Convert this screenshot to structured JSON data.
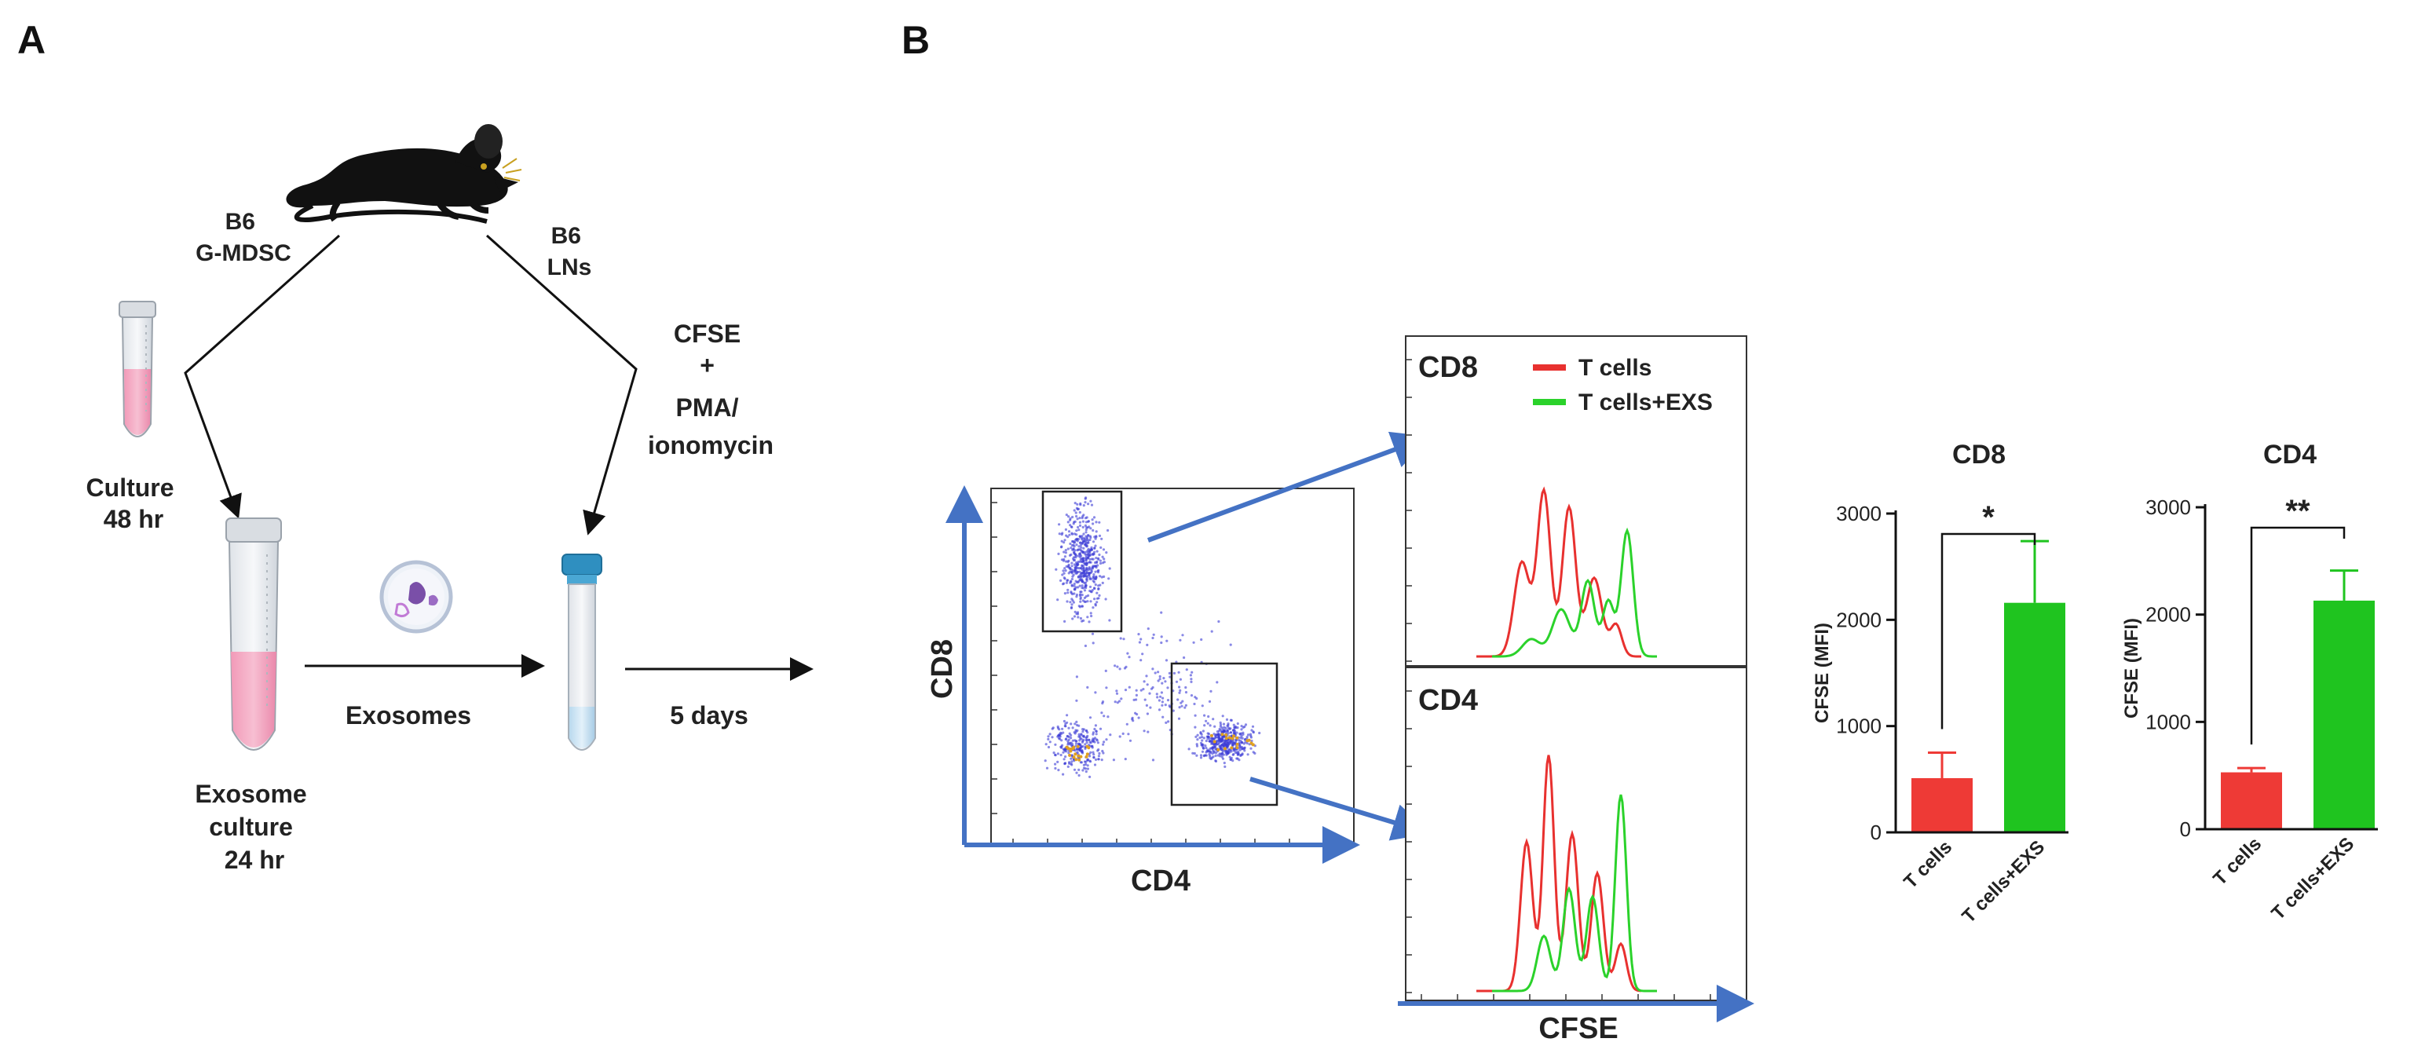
{
  "panels": {
    "a": "A",
    "b": "B"
  },
  "workflow": {
    "donor_left": [
      "B6",
      "G-MDSC"
    ],
    "donor_right": [
      "B6",
      "LNs"
    ],
    "culture": [
      "Culture",
      "48 hr"
    ],
    "stim": [
      "CFSE",
      "+",
      "PMA/",
      "ionomycin"
    ],
    "exosome_culture": [
      "Exosome",
      "culture",
      "24 hr"
    ],
    "exosomes": "Exosomes",
    "duration": "5 days"
  },
  "flow": {
    "x_label": "CD4",
    "y_label": "CD8",
    "hist_top_label": "CD8",
    "hist_bottom_label": "CD4",
    "hist_x_label": "CFSE",
    "legend": [
      {
        "name": "T cells",
        "color": "#e8312f"
      },
      {
        "name": "T cells+EXS",
        "color": "#2bd22b"
      }
    ]
  },
  "colors": {
    "red": "#ee3a36",
    "green": "#1fc41f",
    "arrow_blue": "#4472c4",
    "dot_blue": "#3a3ad6"
  },
  "chart_data": [
    {
      "type": "bar",
      "title": "CD8",
      "categories": [
        "T cells",
        "T cells+EXS"
      ],
      "values": [
        510,
        2160
      ],
      "errors": [
        240,
        580
      ],
      "ylabel": "CFSE (MFI)",
      "ylim": [
        0,
        3000
      ],
      "yticks": [
        0,
        1000,
        2000,
        3000
      ],
      "significance": "*"
    },
    {
      "type": "bar",
      "title": "CD4",
      "categories": [
        "T cells",
        "T cells+EXS"
      ],
      "values": [
        530,
        2130
      ],
      "errors": [
        40,
        280
      ],
      "ylabel": "CFSE (MFI)",
      "ylim": [
        0,
        3000
      ],
      "yticks": [
        0,
        1000,
        2000,
        3000
      ],
      "significance": "**"
    }
  ]
}
